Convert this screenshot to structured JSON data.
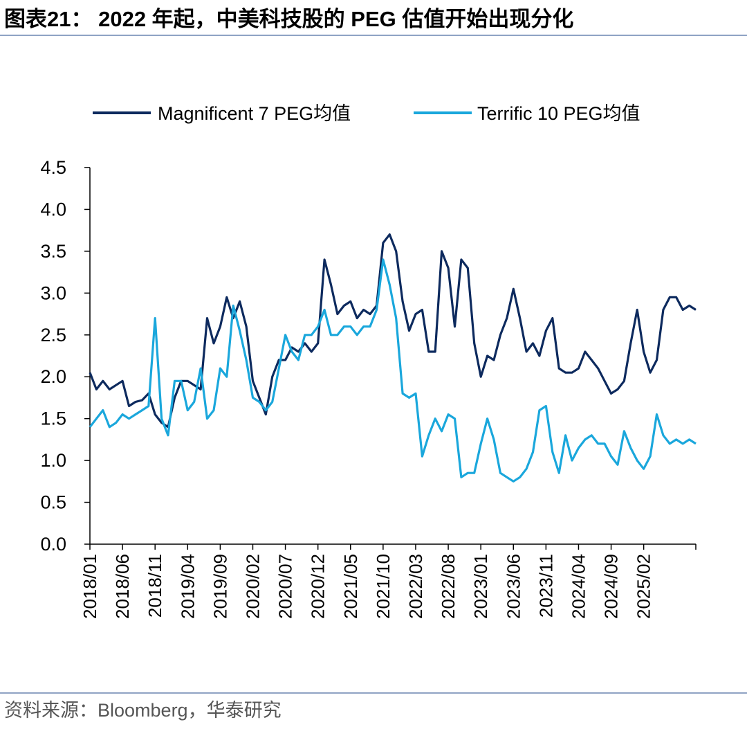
{
  "header": {
    "title": "图表21： 2022 年起，中美科技股的 PEG 估值开始出现分化"
  },
  "footer": {
    "source": "资料来源：Bloomberg，华泰研究"
  },
  "chart_data": {
    "type": "line",
    "title": "2022 年起，中美科技股的 PEG 估值开始出现分化",
    "xlabel": "",
    "ylabel": "",
    "ylim": [
      0,
      4.5
    ],
    "yticks": [
      0.0,
      0.5,
      1.0,
      1.5,
      2.0,
      2.5,
      3.0,
      3.5,
      4.0,
      4.5
    ],
    "yticks_labels": [
      "0.0",
      "0.5",
      "1.0",
      "1.5",
      "2.0",
      "2.5",
      "3.0",
      "3.5",
      "4.0",
      "4.5"
    ],
    "x_range_months": [
      "2018/01",
      "2025/10"
    ],
    "x_tick_labels": [
      "2018/01",
      "2018/06",
      "2018/11",
      "2019/04",
      "2019/09",
      "2020/02",
      "2020/07",
      "2020/12",
      "2021/05",
      "2021/10",
      "2022/03",
      "2022/08",
      "2023/01",
      "2023/06",
      "2023/11",
      "2024/04",
      "2024/09",
      "2025/02"
    ],
    "legend_position": "top",
    "grid": false,
    "x": [
      "2018/01",
      "2018/02",
      "2018/03",
      "2018/04",
      "2018/05",
      "2018/06",
      "2018/07",
      "2018/08",
      "2018/09",
      "2018/10",
      "2018/11",
      "2018/12",
      "2019/01",
      "2019/02",
      "2019/03",
      "2019/04",
      "2019/05",
      "2019/06",
      "2019/07",
      "2019/08",
      "2019/09",
      "2019/10",
      "2019/11",
      "2019/12",
      "2020/01",
      "2020/02",
      "2020/03",
      "2020/04",
      "2020/05",
      "2020/06",
      "2020/07",
      "2020/08",
      "2020/09",
      "2020/10",
      "2020/11",
      "2020/12",
      "2021/01",
      "2021/02",
      "2021/03",
      "2021/04",
      "2021/05",
      "2021/06",
      "2021/07",
      "2021/08",
      "2021/09",
      "2021/10",
      "2021/11",
      "2021/12",
      "2022/01",
      "2022/02",
      "2022/03",
      "2022/04",
      "2022/05",
      "2022/06",
      "2022/07",
      "2022/08",
      "2022/09",
      "2022/10",
      "2022/11",
      "2022/12",
      "2023/01",
      "2023/02",
      "2023/03",
      "2023/04",
      "2023/05",
      "2023/06",
      "2023/07",
      "2023/08",
      "2023/09",
      "2023/10",
      "2023/11",
      "2023/12",
      "2024/01",
      "2024/02",
      "2024/03",
      "2024/04",
      "2024/05",
      "2024/06",
      "2024/07",
      "2024/08",
      "2024/09",
      "2024/10",
      "2024/11",
      "2024/12",
      "2025/01",
      "2025/02",
      "2025/03",
      "2025/04",
      "2025/05",
      "2025/06",
      "2025/07",
      "2025/08",
      "2025/09",
      "2025/10"
    ],
    "series": [
      {
        "name": "Magnificent 7 PEG均值",
        "color": "#0d2a5e",
        "values": [
          2.05,
          1.85,
          1.95,
          1.85,
          1.9,
          1.95,
          1.65,
          1.7,
          1.72,
          1.8,
          1.55,
          1.45,
          1.4,
          1.75,
          1.95,
          1.95,
          1.9,
          1.85,
          2.7,
          2.4,
          2.6,
          2.95,
          2.7,
          2.9,
          2.6,
          1.95,
          1.75,
          1.55,
          2.0,
          2.2,
          2.2,
          2.35,
          2.3,
          2.4,
          2.3,
          2.4,
          3.4,
          3.1,
          2.75,
          2.85,
          2.9,
          2.7,
          2.8,
          2.75,
          2.85,
          3.6,
          3.7,
          3.5,
          2.9,
          2.55,
          2.75,
          2.8,
          2.3,
          2.3,
          3.5,
          3.3,
          2.6,
          3.4,
          3.3,
          2.4,
          2.0,
          2.25,
          2.2,
          2.5,
          2.7,
          3.05,
          2.7,
          2.3,
          2.4,
          2.25,
          2.55,
          2.7,
          2.1,
          2.05,
          2.05,
          2.1,
          2.3,
          2.2,
          2.1,
          1.95,
          1.8,
          1.85,
          1.95,
          2.4,
          2.8,
          2.3,
          2.05,
          2.2,
          2.8,
          2.95,
          2.95,
          2.8,
          2.85,
          2.8
        ]
      },
      {
        "name": "Terrific 10 PEG均值",
        "color": "#1aa7dc",
        "values": [
          1.4,
          1.5,
          1.6,
          1.4,
          1.45,
          1.55,
          1.5,
          1.55,
          1.6,
          1.65,
          2.7,
          1.5,
          1.3,
          1.95,
          1.95,
          1.6,
          1.7,
          2.1,
          1.5,
          1.6,
          2.1,
          2.0,
          2.85,
          2.55,
          2.2,
          1.75,
          1.7,
          1.6,
          1.7,
          2.1,
          2.5,
          2.3,
          2.2,
          2.5,
          2.5,
          2.6,
          2.8,
          2.5,
          2.5,
          2.6,
          2.6,
          2.5,
          2.6,
          2.6,
          2.8,
          3.4,
          3.1,
          2.7,
          1.8,
          1.75,
          1.8,
          1.05,
          1.3,
          1.5,
          1.35,
          1.55,
          1.5,
          0.8,
          0.85,
          0.85,
          1.2,
          1.5,
          1.25,
          0.85,
          0.8,
          0.75,
          0.8,
          0.9,
          1.1,
          1.6,
          1.65,
          1.1,
          0.85,
          1.3,
          1.0,
          1.15,
          1.25,
          1.3,
          1.2,
          1.2,
          1.05,
          0.95,
          1.35,
          1.15,
          1.0,
          0.9,
          1.05,
          1.55,
          1.3,
          1.2,
          1.25,
          1.2,
          1.25,
          1.2
        ]
      }
    ]
  }
}
